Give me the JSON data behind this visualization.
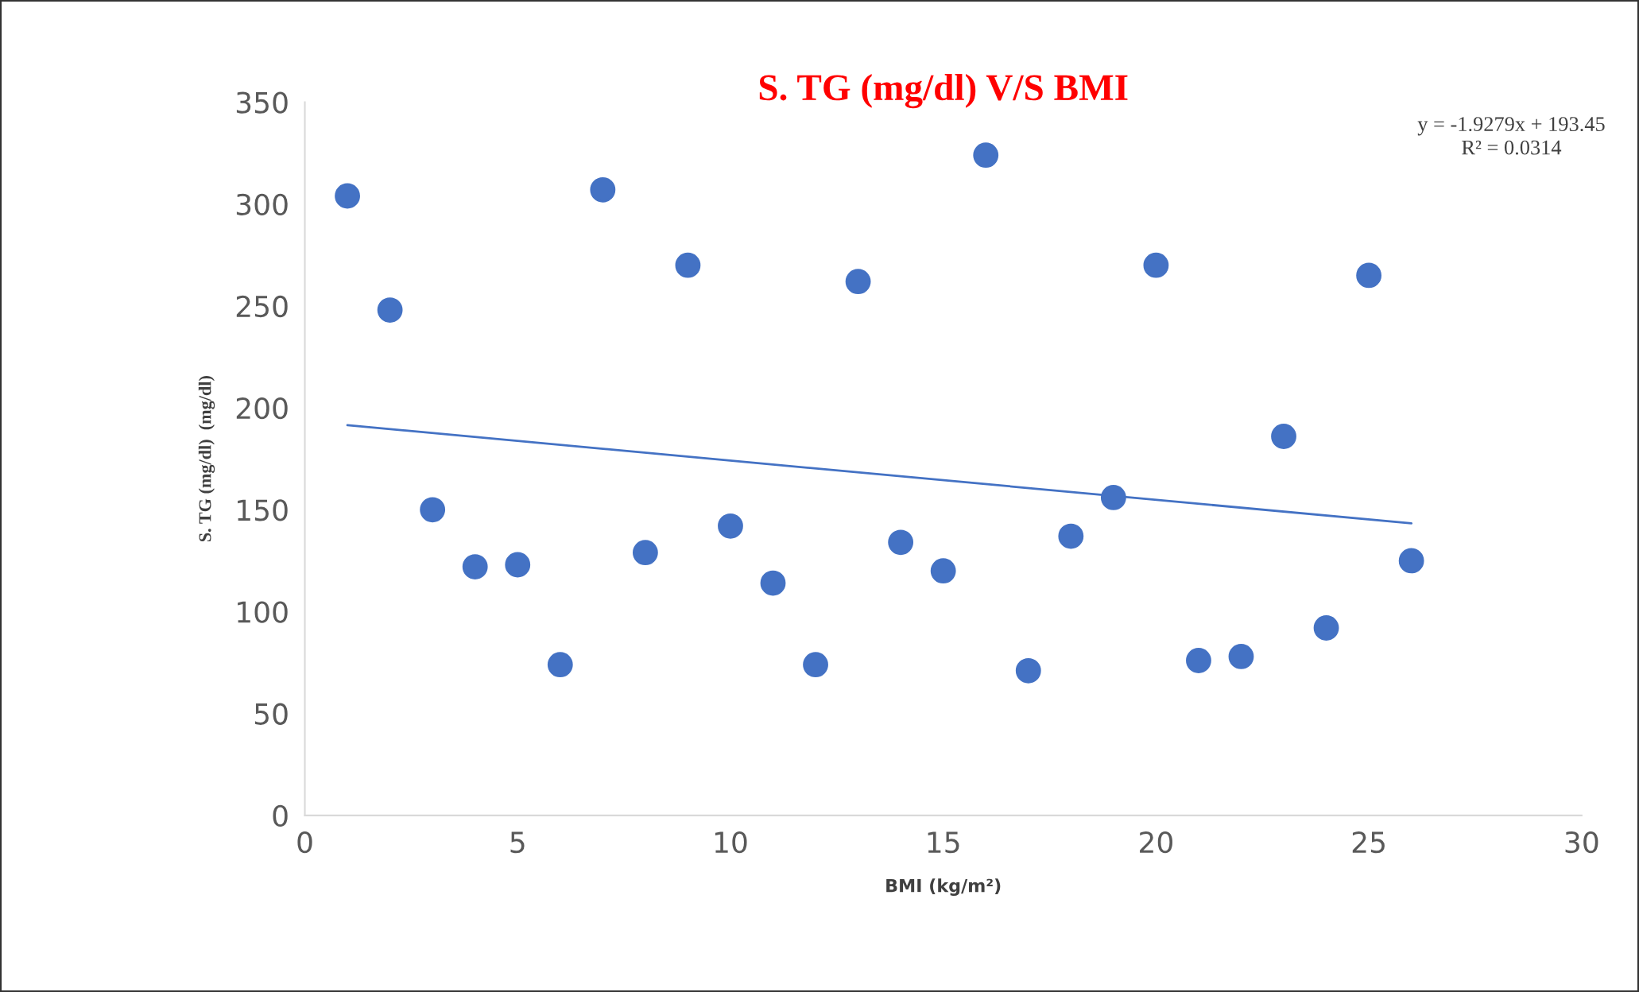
{
  "chart_data": {
    "type": "scatter",
    "title": "S. TG (mg/dl) V/S BMI",
    "xlabel": "BMI (kg/m²)",
    "ylabel": "S. TG (mg/dl)  (mg/dl)",
    "xlim": [
      0,
      30
    ],
    "xticks": [
      0,
      5,
      10,
      15,
      20,
      25,
      30
    ],
    "ylim": [
      0,
      350
    ],
    "yticks": [
      0,
      50,
      100,
      150,
      200,
      250,
      300,
      350
    ],
    "grid": false,
    "legend": false,
    "series": [
      {
        "marker": "circle",
        "color": "#4472c4",
        "x": [
          1,
          2,
          3,
          4,
          5,
          6,
          7,
          8,
          9,
          10,
          11,
          12,
          13,
          14,
          15,
          16,
          17,
          18,
          19,
          20,
          21,
          22,
          23,
          24,
          25,
          26
        ],
        "values": [
          304,
          248,
          150,
          122,
          123,
          74,
          307,
          129,
          270,
          142,
          114,
          74,
          262,
          134,
          120,
          324,
          71,
          137,
          156,
          270,
          76,
          78,
          186,
          92,
          265,
          125
        ]
      },
      {
        "type": "line",
        "color": "#4472c4",
        "line_style": "solid",
        "x": [
          1,
          26
        ],
        "values": [
          191.5,
          143.3
        ]
      }
    ],
    "annotations": [
      "y = -1.9279x + 193.45",
      "R² = 0.0314"
    ]
  }
}
